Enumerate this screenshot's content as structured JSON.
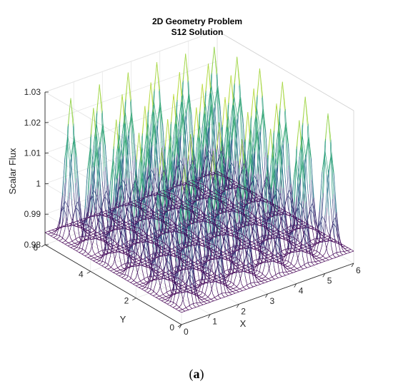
{
  "chart_data": {
    "type": "surface",
    "title": [
      "2D Geometry Problem",
      "S12 Solution"
    ],
    "xlabel": "X",
    "ylabel": "Y",
    "zlabel": "Scalar Flux",
    "xlim": [
      0,
      6
    ],
    "ylim": [
      0,
      6
    ],
    "zlim": [
      0.98,
      1.03
    ],
    "x_ticks": [
      0,
      1,
      2,
      3,
      4,
      5,
      6
    ],
    "y_ticks": [
      0,
      2,
      4,
      6
    ],
    "z_ticks": [
      0.98,
      0.99,
      1,
      1.01,
      1.02,
      1.03
    ],
    "z_tick_labels": [
      "0.98",
      "0.99",
      "1",
      "1.01",
      "1.02",
      "1.03"
    ],
    "grid": true,
    "style": "mesh",
    "colormap": [
      "#440154",
      "#3b528b",
      "#21918c",
      "#5ec962",
      "#fde725"
    ],
    "peak_centers_x": [
      0.5,
      1.5,
      2.5,
      3.5,
      4.5,
      5.5
    ],
    "peak_centers_y": [
      0.5,
      1.5,
      2.5,
      3.5,
      4.5,
      5.5
    ],
    "peak_flux_range": [
      1.022,
      1.032
    ],
    "valley_flux_min": 0.984
  },
  "caption": {
    "open": "(",
    "letter": "a",
    "close": ")"
  }
}
